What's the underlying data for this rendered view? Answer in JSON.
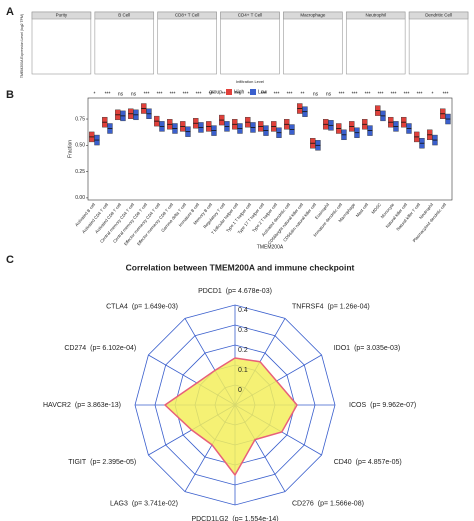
{
  "chart_data": [
    {
      "type": "panel-grid",
      "panel": "A",
      "ylabel": "TMEM200A Expression Level (log2 TPM)",
      "xlabel": "Infiltration Level",
      "panels": [
        "Purity",
        "B Cell",
        "CD8+ T Cell",
        "CD4+ T Cell",
        "Macrophage",
        "Neutrophil",
        "Dendritic Cell"
      ]
    },
    {
      "type": "box",
      "panel": "B",
      "ylabel": "Fraction",
      "xlabel": "TMEM200A",
      "legend_title": "group",
      "categories": [
        "Activated B cell",
        "Activated CD4 T cell",
        "Activated CD8 T cell",
        "Central memory CD4 T cell",
        "Central memory CD8 T cell",
        "Effector memeory CD4 T cell",
        "Effector memeory CD8 T cell",
        "Gamma delta T cell",
        "Immature B cell",
        "Memory B cell",
        "Regulatory T cell",
        "T follicular helper cell",
        "Type 1 T helper cell",
        "Type 17 T helper cell",
        "Type 2 T helper cell",
        "Activated dendritic cell",
        "CD56bright natural killer cell",
        "CD56dim natural killer cell",
        "Eosinophil",
        "Immature dendritic cell",
        "Macrophage",
        "Mast cell",
        "MDSC",
        "Monocyte",
        "Natural killer cell",
        "Natural killer T cell",
        "Neutrophil",
        "Plasmacytoid dendritic cell"
      ],
      "significance": [
        "*",
        "***",
        "ns",
        "ns",
        "***",
        "***",
        "***",
        "***",
        "***",
        "***",
        "***",
        "***",
        "***",
        "***",
        "***",
        "***",
        "**",
        "ns",
        "ns",
        "***",
        "***",
        "***",
        "***",
        "***",
        "***",
        "***",
        "*",
        "***"
      ],
      "series": [
        {
          "name": "High",
          "color": "#e0403a",
          "values": [
            0.58,
            0.72,
            0.79,
            0.8,
            0.85,
            0.73,
            0.7,
            0.68,
            0.71,
            0.68,
            0.74,
            0.7,
            0.72,
            0.68,
            0.68,
            0.7,
            0.85,
            0.52,
            0.7,
            0.66,
            0.68,
            0.7,
            0.83,
            0.72,
            0.72,
            0.58,
            0.6,
            0.8
          ]
        },
        {
          "name": "Low",
          "color": "#3a5fcd",
          "values": [
            0.55,
            0.66,
            0.78,
            0.79,
            0.8,
            0.68,
            0.66,
            0.63,
            0.67,
            0.64,
            0.68,
            0.66,
            0.67,
            0.64,
            0.62,
            0.65,
            0.82,
            0.5,
            0.69,
            0.6,
            0.62,
            0.64,
            0.78,
            0.68,
            0.66,
            0.52,
            0.55,
            0.75
          ]
        }
      ],
      "ylim": [
        -0.02,
        0.95
      ],
      "yticks": [
        {
          "value": 0,
          "label": "0.00"
        },
        {
          "value": 0.25,
          "label": "0.25"
        },
        {
          "value": 0.5,
          "label": "0.50"
        },
        {
          "value": 0.75,
          "label": "0.75"
        }
      ]
    },
    {
      "type": "radar",
      "panel": "C",
      "title": "Correlation between TMEM200A and immune checkpoint",
      "categories": [
        "PDCD1",
        "TNFRSF4",
        "IDO1",
        "ICOS",
        "CD40",
        "CD276",
        "PDCD1LG2",
        "LAG3",
        "TIGIT",
        "HAVCR2",
        "CD274",
        "CTLA4"
      ],
      "pvalue_labels": [
        "(p= 4.678e-03)",
        "(p= 1.26e-04)",
        "(p= 3.035e-03)",
        "(p= 9.962e-07)",
        "(p= 4.857e-05)",
        "(p= 1.566e-08)",
        "(p= 1.554e-14)",
        "(p= 3.741e-02)",
        "(p= 2.395e-05)",
        "(p= 3.863e-13)",
        "(p= 6.102e-04)",
        "(p= 1.649e-03)"
      ],
      "values": [
        0.135,
        0.15,
        0.14,
        0.21,
        0.17,
        0.1,
        0.25,
        0.13,
        0.15,
        0.25,
        0.12,
        0.1
      ],
      "color": "#f3ef5c",
      "edge_color": "#e8607a",
      "grid_color": "#3a5fcd",
      "rlim": [
        -0.1,
        0.4
      ],
      "rticks": [
        0,
        0.1,
        0.2,
        0.3,
        0.4
      ]
    }
  ]
}
